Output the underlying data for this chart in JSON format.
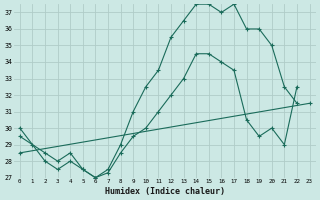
{
  "xlabel": "Humidex (Indice chaleur)",
  "background_color": "#cce8e4",
  "line_color": "#1a6b5a",
  "grid_color": "#b8d8d4",
  "ylim": [
    27,
    37.5
  ],
  "xlim": [
    -0.5,
    23.5
  ],
  "yticks": [
    27,
    28,
    29,
    30,
    31,
    32,
    33,
    34,
    35,
    36,
    37
  ],
  "xticks": [
    0,
    1,
    2,
    3,
    4,
    5,
    6,
    7,
    8,
    9,
    10,
    11,
    12,
    13,
    14,
    15,
    16,
    17,
    18,
    19,
    20,
    21,
    22,
    23
  ],
  "line1": {
    "x": [
      0,
      1,
      2,
      3,
      4,
      5,
      6,
      7,
      8,
      9,
      10,
      11,
      12,
      13,
      14,
      15,
      16,
      17,
      18,
      19,
      20,
      21,
      22
    ],
    "y": [
      30,
      29,
      28,
      27.5,
      28,
      27.5,
      27,
      27.5,
      29,
      31,
      32.5,
      33.5,
      35.5,
      36.5,
      37.5,
      37.5,
      37,
      37.5,
      36,
      36,
      35,
      32.5,
      31.5
    ]
  },
  "line2": {
    "x": [
      0,
      2,
      3,
      4,
      5,
      6,
      7,
      8,
      9,
      10,
      11,
      12,
      13,
      14,
      15,
      16,
      17,
      18,
      19,
      20,
      21,
      22
    ],
    "y": [
      29.5,
      28.5,
      28,
      28.5,
      27.5,
      27,
      27.3,
      28.5,
      29.5,
      30,
      31,
      32,
      33,
      34.5,
      34.5,
      34,
      33.5,
      30.5,
      29.5,
      30,
      29,
      32.5
    ]
  },
  "line3": {
    "x": [
      0,
      23
    ],
    "y": [
      28.5,
      31.5
    ]
  }
}
